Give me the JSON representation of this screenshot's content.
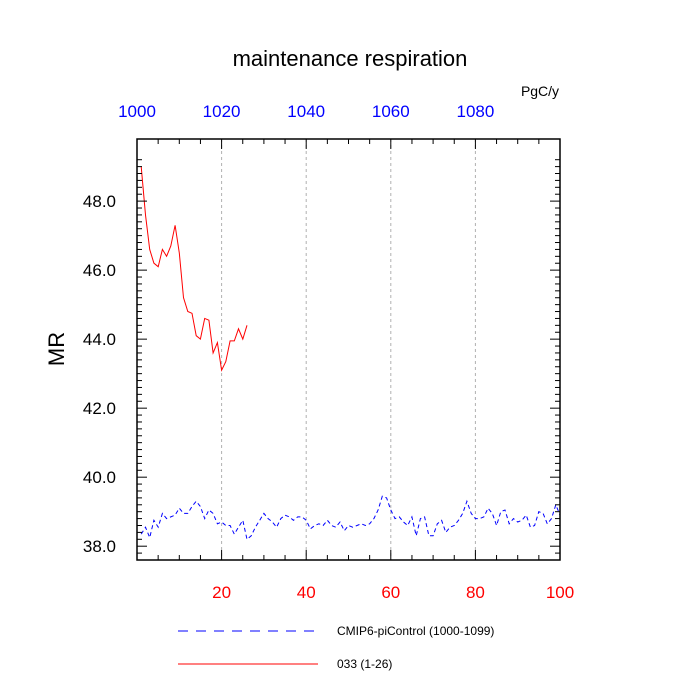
{
  "chart_data": {
    "type": "line",
    "title": "maintenance respiration",
    "ylabel": "MR",
    "units_label": "PgC/y",
    "xlim": [
      0,
      100
    ],
    "ylim": [
      37.6,
      49.8
    ],
    "xticks": [
      20,
      40,
      60,
      80,
      100
    ],
    "xtick_labels": [
      "20",
      "40",
      "60",
      "80",
      "100"
    ],
    "top_xticks": [
      0,
      20,
      40,
      60,
      80
    ],
    "top_xtick_labels": [
      "1000",
      "1020",
      "1040",
      "1060",
      "1080"
    ],
    "yticks": [
      38,
      40,
      42,
      44,
      46,
      48
    ],
    "ytick_labels": [
      "38.0",
      "40.0",
      "42.0",
      "44.0",
      "46.0",
      "48.0"
    ],
    "grid": "vertical dashed at bottom x ticks",
    "colors": {
      "bottom_axis": "#ff0000",
      "top_axis": "#0000ff",
      "series_control": "#0000ff",
      "series_run": "#ff0000"
    },
    "series": [
      {
        "name": "CMIP6-piControl (1000-1099)",
        "style": "dashed",
        "color": "#0000ff",
        "x": [
          1,
          2,
          3,
          4,
          5,
          6,
          7,
          8,
          9,
          10,
          11,
          12,
          13,
          14,
          15,
          16,
          17,
          18,
          19,
          20,
          21,
          22,
          23,
          24,
          25,
          26,
          27,
          28,
          29,
          30,
          31,
          32,
          33,
          34,
          35,
          36,
          37,
          38,
          39,
          40,
          41,
          42,
          43,
          44,
          45,
          46,
          47,
          48,
          49,
          50,
          51,
          52,
          53,
          54,
          55,
          56,
          57,
          58,
          59,
          60,
          61,
          62,
          63,
          64,
          65,
          66,
          67,
          68,
          69,
          70,
          71,
          72,
          73,
          74,
          75,
          76,
          77,
          78,
          79,
          80,
          81,
          82,
          83,
          84,
          85,
          86,
          87,
          88,
          89,
          90,
          91,
          92,
          93,
          94,
          95,
          96,
          97,
          98,
          99,
          100
        ],
        "values": [
          38.35,
          38.55,
          38.25,
          38.75,
          38.55,
          38.95,
          38.8,
          38.85,
          38.9,
          39.1,
          38.95,
          38.95,
          39.15,
          39.3,
          39.15,
          38.8,
          39.05,
          38.95,
          38.65,
          38.7,
          38.6,
          38.6,
          38.35,
          38.55,
          38.75,
          38.2,
          38.3,
          38.55,
          38.75,
          38.95,
          38.8,
          38.7,
          38.55,
          38.8,
          38.9,
          38.85,
          38.75,
          38.85,
          38.85,
          38.75,
          38.5,
          38.6,
          38.65,
          38.6,
          38.75,
          38.6,
          38.55,
          38.7,
          38.45,
          38.6,
          38.55,
          38.6,
          38.65,
          38.6,
          38.65,
          38.8,
          39.05,
          39.45,
          39.4,
          39.05,
          38.8,
          38.85,
          38.7,
          38.6,
          38.85,
          38.3,
          38.8,
          38.85,
          38.3,
          38.3,
          38.65,
          38.75,
          38.4,
          38.55,
          38.6,
          38.75,
          38.95,
          39.3,
          38.95,
          38.8,
          38.8,
          38.85,
          39.1,
          38.95,
          38.6,
          39.0,
          39.05,
          38.65,
          38.8,
          38.7,
          38.75,
          38.9,
          38.55,
          38.6,
          39.0,
          38.95,
          38.65,
          38.8,
          39.2,
          38.9
        ]
      },
      {
        "name": "033 (1-26)",
        "style": "solid",
        "color": "#ff0000",
        "x": [
          1,
          2,
          3,
          4,
          5,
          6,
          7,
          8,
          9,
          10,
          11,
          12,
          13,
          14,
          15,
          16,
          17,
          18,
          19,
          20,
          21,
          22,
          23,
          24,
          25,
          26
        ],
        "values": [
          49.0,
          47.6,
          46.6,
          46.2,
          46.1,
          46.6,
          46.4,
          46.7,
          47.3,
          46.5,
          45.2,
          44.8,
          44.75,
          44.1,
          44.0,
          44.6,
          44.55,
          43.6,
          43.9,
          43.1,
          43.35,
          43.95,
          43.95,
          44.3,
          44.0,
          44.4
        ]
      }
    ]
  }
}
